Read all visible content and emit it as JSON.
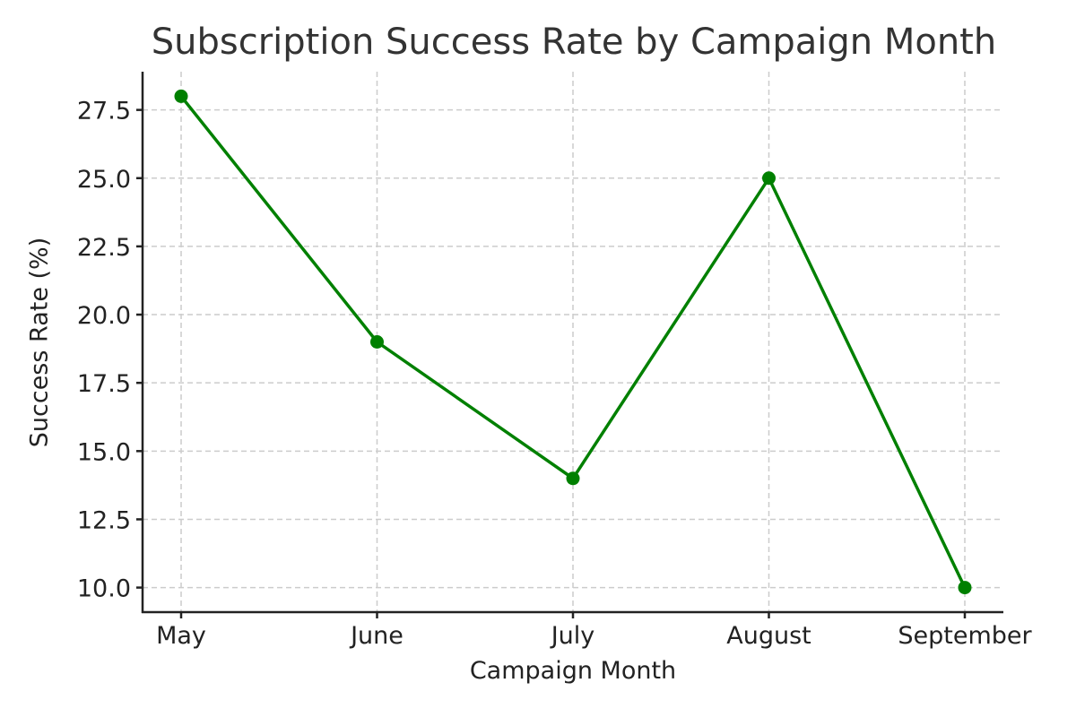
{
  "chart_data": {
    "type": "line",
    "title": "Subscription Success Rate by Campaign Month",
    "xlabel": "Campaign Month",
    "ylabel": "Success Rate (%)",
    "categories": [
      "May",
      "June",
      "July",
      "August",
      "September"
    ],
    "series": [
      {
        "name": "Success Rate (%)",
        "values": [
          28,
          19,
          14,
          25,
          10
        ],
        "color": "#008000",
        "marker": "circle"
      }
    ],
    "yticks": [
      "10.0",
      "12.5",
      "15.0",
      "17.5",
      "20.0",
      "22.5",
      "25.0",
      "27.5"
    ],
    "ylim": [
      9.1,
      28.9
    ],
    "grid": true,
    "grid_style": "dashed",
    "legend": null
  }
}
